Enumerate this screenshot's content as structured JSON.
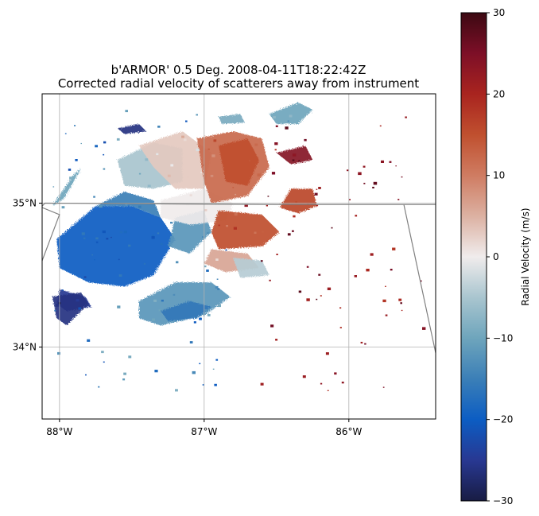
{
  "chart_data": {
    "type": "heatmap",
    "title_line1": "b'ARMOR' 0.5 Deg. 2008-04-11T18:22:42Z",
    "title_line2": "Corrected radial velocity of scatterers away from instrument",
    "map": {
      "projection": "lon-lat",
      "xlim": [
        -88.12,
        -85.4
      ],
      "ylim": [
        33.5,
        35.76
      ],
      "x_ticks": [
        -88,
        -87,
        -86
      ],
      "x_tick_labels": [
        "88°W",
        "87°W",
        "86°W"
      ],
      "y_ticks": [
        34,
        35
      ],
      "y_tick_labels": [
        "34°N",
        "35°N"
      ],
      "grid": true,
      "state_borders": [
        [
          [
            -88.12,
            34.98
          ],
          [
            -88.1,
            35.0
          ],
          [
            -86.5,
            34.99
          ],
          [
            -85.4,
            34.99
          ]
        ],
        [
          [
            -88.12,
            34.97
          ],
          [
            -88.0,
            34.92
          ],
          [
            -88.12,
            34.6
          ]
        ],
        [
          [
            -85.62,
            34.99
          ],
          [
            -85.4,
            33.96
          ]
        ]
      ]
    },
    "colorbar": {
      "label": "Radial Velocity (m/s)",
      "vmin": -30,
      "vmax": 30,
      "ticks": [
        -30,
        -20,
        -10,
        0,
        10,
        20,
        30
      ],
      "tick_labels": [
        "−30",
        "−20",
        "−10",
        "0",
        "10",
        "20",
        "30"
      ],
      "colormap": "balance",
      "stops": [
        {
          "v": -30,
          "color": "#181c43"
        },
        {
          "v": -25,
          "color": "#283892"
        },
        {
          "v": -20,
          "color": "#0c5dc3"
        },
        {
          "v": -15,
          "color": "#3b7fb7"
        },
        {
          "v": -10,
          "color": "#6ea5bc"
        },
        {
          "v": -5,
          "color": "#a9c5cf"
        },
        {
          "v": 0,
          "color": "#f0ecec"
        },
        {
          "v": 5,
          "color": "#dcb1a2"
        },
        {
          "v": 10,
          "color": "#cf7c62"
        },
        {
          "v": 15,
          "color": "#c0502f"
        },
        {
          "v": 20,
          "color": "#a9241f"
        },
        {
          "v": 25,
          "color": "#7d0f27"
        },
        {
          "v": 30,
          "color": "#3c0912"
        }
      ]
    },
    "echo_regions": [
      {
        "name": "west-inbound-core",
        "v": -20,
        "poly": [
          [
            -88.02,
            34.75
          ],
          [
            -87.75,
            34.98
          ],
          [
            -87.5,
            34.98
          ],
          [
            -87.3,
            34.9
          ],
          [
            -87.2,
            34.75
          ],
          [
            -87.35,
            34.5
          ],
          [
            -87.55,
            34.42
          ],
          [
            -87.8,
            34.45
          ],
          [
            -88.0,
            34.55
          ]
        ]
      },
      {
        "name": "west-inbound-edge",
        "v": -15,
        "poly": [
          [
            -87.75,
            34.98
          ],
          [
            -87.55,
            35.08
          ],
          [
            -87.35,
            35.02
          ],
          [
            -87.3,
            34.9
          ],
          [
            -87.5,
            34.98
          ]
        ]
      },
      {
        "name": "west-inbound-dark",
        "v": -25,
        "poly": [
          [
            -88.0,
            34.4
          ],
          [
            -87.82,
            34.35
          ],
          [
            -87.78,
            34.28
          ],
          [
            -87.95,
            34.25
          ],
          [
            -88.02,
            34.3
          ]
        ]
      },
      {
        "name": "northwest-strip",
        "v": -10,
        "poly": [
          [
            -88.05,
            34.98
          ],
          [
            -87.9,
            35.2
          ],
          [
            -87.85,
            35.24
          ],
          [
            -87.97,
            35.03
          ]
        ]
      },
      {
        "name": "west-margin-light",
        "v": -12,
        "poly": [
          [
            -87.2,
            34.9
          ],
          [
            -87.0,
            34.95
          ],
          [
            -86.95,
            34.8
          ],
          [
            -87.1,
            34.65
          ],
          [
            -87.25,
            34.7
          ]
        ]
      },
      {
        "name": "south-inbound",
        "v": -12,
        "poly": [
          [
            -87.45,
            34.32
          ],
          [
            -87.2,
            34.45
          ],
          [
            -86.95,
            34.45
          ],
          [
            -86.82,
            34.35
          ],
          [
            -87.0,
            34.22
          ],
          [
            -87.3,
            34.15
          ],
          [
            -87.45,
            34.2
          ]
        ]
      },
      {
        "name": "south-inbound-dark",
        "v": -16,
        "poly": [
          [
            -87.3,
            34.25
          ],
          [
            -87.1,
            34.32
          ],
          [
            -86.95,
            34.28
          ],
          [
            -87.05,
            34.2
          ],
          [
            -87.25,
            34.18
          ]
        ]
      },
      {
        "name": "northwest-light",
        "v": -5,
        "poly": [
          [
            -87.6,
            35.3
          ],
          [
            -87.35,
            35.42
          ],
          [
            -87.15,
            35.38
          ],
          [
            -87.15,
            35.15
          ],
          [
            -87.35,
            35.1
          ],
          [
            -87.55,
            35.12
          ]
        ]
      },
      {
        "name": "north-zero-band",
        "v": 3,
        "poly": [
          [
            -87.45,
            35.4
          ],
          [
            -87.15,
            35.5
          ],
          [
            -86.95,
            35.35
          ],
          [
            -87.0,
            35.1
          ],
          [
            -87.2,
            35.1
          ],
          [
            -87.35,
            35.25
          ]
        ]
      },
      {
        "name": "center-white",
        "v": 0,
        "poly": [
          [
            -87.3,
            35.02
          ],
          [
            -87.0,
            35.1
          ],
          [
            -86.8,
            35.0
          ],
          [
            -86.85,
            34.88
          ],
          [
            -87.1,
            34.85
          ],
          [
            -87.3,
            34.9
          ]
        ]
      },
      {
        "name": "north-outbound",
        "v": 12,
        "poly": [
          [
            -87.05,
            35.45
          ],
          [
            -86.8,
            35.5
          ],
          [
            -86.6,
            35.45
          ],
          [
            -86.55,
            35.25
          ],
          [
            -86.7,
            35.05
          ],
          [
            -86.95,
            35.0
          ],
          [
            -87.0,
            35.15
          ]
        ]
      },
      {
        "name": "north-outbound-core",
        "v": 15,
        "poly": [
          [
            -86.9,
            35.4
          ],
          [
            -86.7,
            35.45
          ],
          [
            -86.62,
            35.3
          ],
          [
            -86.7,
            35.12
          ],
          [
            -86.85,
            35.15
          ]
        ]
      },
      {
        "name": "east-outbound",
        "v": 16,
        "poly": [
          [
            -86.4,
            35.1
          ],
          [
            -86.25,
            35.1
          ],
          [
            -86.22,
            34.98
          ],
          [
            -86.35,
            34.93
          ],
          [
            -86.48,
            34.97
          ]
        ]
      },
      {
        "name": "southeast-outbound",
        "v": 15,
        "poly": [
          [
            -86.9,
            34.95
          ],
          [
            -86.6,
            34.92
          ],
          [
            -86.48,
            34.8
          ],
          [
            -86.6,
            34.7
          ],
          [
            -86.9,
            34.68
          ],
          [
            -86.95,
            34.8
          ]
        ]
      },
      {
        "name": "southeast-light",
        "v": 6,
        "poly": [
          [
            -86.95,
            34.68
          ],
          [
            -86.7,
            34.65
          ],
          [
            -86.62,
            34.55
          ],
          [
            -86.85,
            34.52
          ],
          [
            -87.0,
            34.58
          ]
        ]
      },
      {
        "name": "northeast-inbound",
        "v": -10,
        "poly": [
          [
            -86.55,
            35.62
          ],
          [
            -86.35,
            35.7
          ],
          [
            -86.25,
            35.65
          ],
          [
            -86.35,
            35.55
          ],
          [
            -86.5,
            35.55
          ]
        ]
      },
      {
        "name": "north-inbound-cell",
        "v": -9,
        "poly": [
          [
            -86.9,
            35.6
          ],
          [
            -86.75,
            35.62
          ],
          [
            -86.72,
            35.56
          ],
          [
            -86.88,
            35.55
          ]
        ]
      },
      {
        "name": "northwest-dark-cell",
        "v": -26,
        "poly": [
          [
            -87.6,
            35.52
          ],
          [
            -87.45,
            35.55
          ],
          [
            -87.4,
            35.5
          ],
          [
            -87.55,
            35.48
          ]
        ]
      },
      {
        "name": "southwest-dark-cell",
        "v": -26,
        "poly": [
          [
            -88.05,
            34.35
          ],
          [
            -87.85,
            34.38
          ],
          [
            -87.8,
            34.3
          ],
          [
            -87.95,
            34.15
          ],
          [
            -88.02,
            34.2
          ]
        ]
      },
      {
        "name": "east-maroon-cells",
        "v": 24,
        "poly": [
          [
            -86.5,
            35.35
          ],
          [
            -86.3,
            35.4
          ],
          [
            -86.25,
            35.3
          ],
          [
            -86.4,
            35.27
          ]
        ]
      },
      {
        "name": "southeast-purple-cell",
        "v": -4,
        "poly": [
          [
            -86.8,
            34.62
          ],
          [
            -86.6,
            34.6
          ],
          [
            -86.55,
            34.5
          ],
          [
            -86.75,
            34.48
          ]
        ]
      }
    ],
    "speckle_seeds": 420
  }
}
